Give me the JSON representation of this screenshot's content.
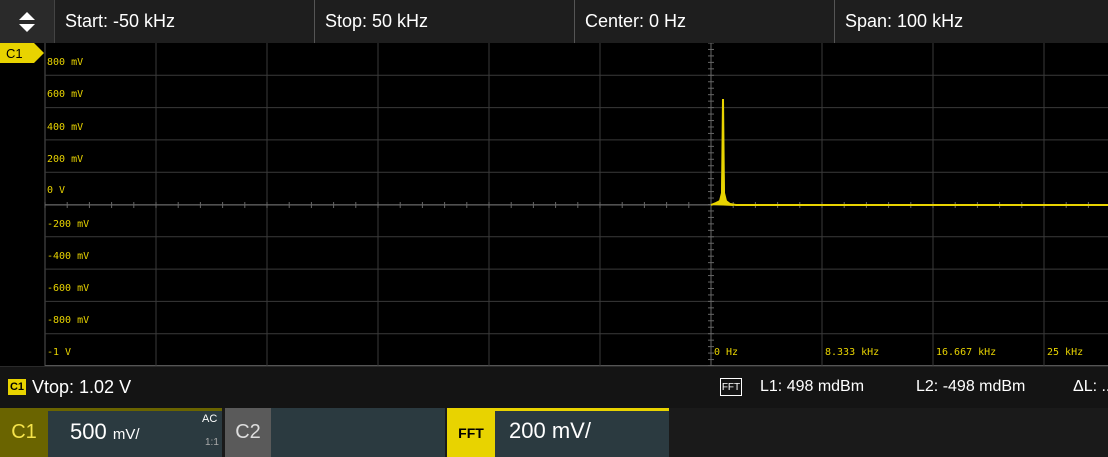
{
  "header": {
    "start": "Start: -50 kHz",
    "stop": "Stop: 50 kHz",
    "center": "Center: 0 Hz",
    "span": "Span: 100 kHz"
  },
  "plot": {
    "y_labels": [
      "800 mV",
      "600 mV",
      "400 mV",
      "200 mV",
      "0 V",
      "-200 mV",
      "-400 mV",
      "-600 mV",
      "-800 mV",
      "-1 V"
    ],
    "x_labels": [
      "0 Hz",
      "8.333 kHz",
      "16.667 kHz",
      "25 kHz"
    ],
    "trace_color": "#e8d300",
    "grid_color": "#3a3a3a",
    "channel_marker": "C1"
  },
  "status": {
    "channel_tag": "C1",
    "vtop": "Vtop: 1.02 V",
    "fft_label": "FFT",
    "l1": "L1: 498 mdBm",
    "l2": "L2: -498 mdBm",
    "delta_l": "ΔL: ..."
  },
  "channels": {
    "c1": {
      "label": "C1",
      "scale_value": "500",
      "scale_unit": "mV/",
      "coupling": "AC",
      "ratio": "1:1"
    },
    "c2": {
      "label": "C2"
    },
    "fft": {
      "label": "FFT",
      "scale": "200 mV/"
    }
  },
  "icons": {
    "scroll": "up-down-arrows-icon"
  }
}
